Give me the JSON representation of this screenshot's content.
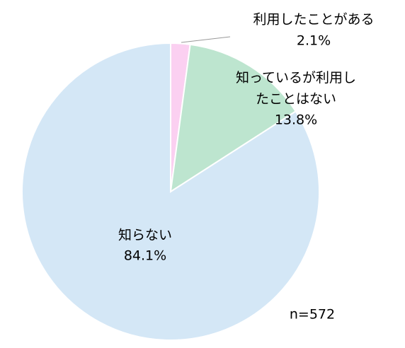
{
  "chart_data": {
    "type": "pie",
    "categories": [
      "利用したことがある",
      "知っているが利用し\nたことはない",
      "知らない"
    ],
    "values": [
      2.1,
      13.8,
      84.1
    ],
    "value_labels": [
      "2.1%",
      "13.8%",
      "84.1%"
    ],
    "colors": [
      "#fbd0f1",
      "#bde5cf",
      "#d4e7f6"
    ],
    "note": "n=572"
  }
}
